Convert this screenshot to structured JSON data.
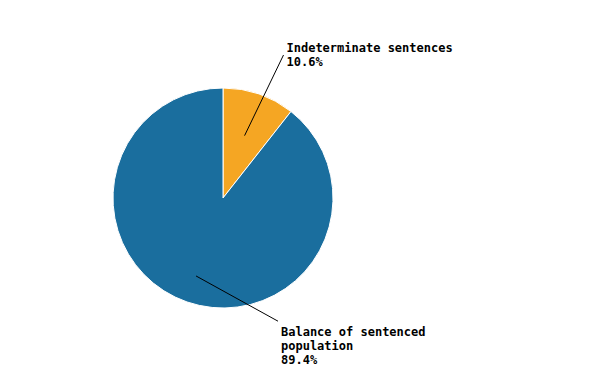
{
  "chart_data": {
    "type": "pie",
    "categories": [
      "Indeterminate sentences",
      "Balance of sentenced\npopulation"
    ],
    "values": [
      10.6,
      89.4
    ],
    "value_labels": [
      "10.6%",
      "89.4%"
    ],
    "colors": [
      "#f5a623",
      "#1a6e9e"
    ],
    "data_labels": true
  }
}
